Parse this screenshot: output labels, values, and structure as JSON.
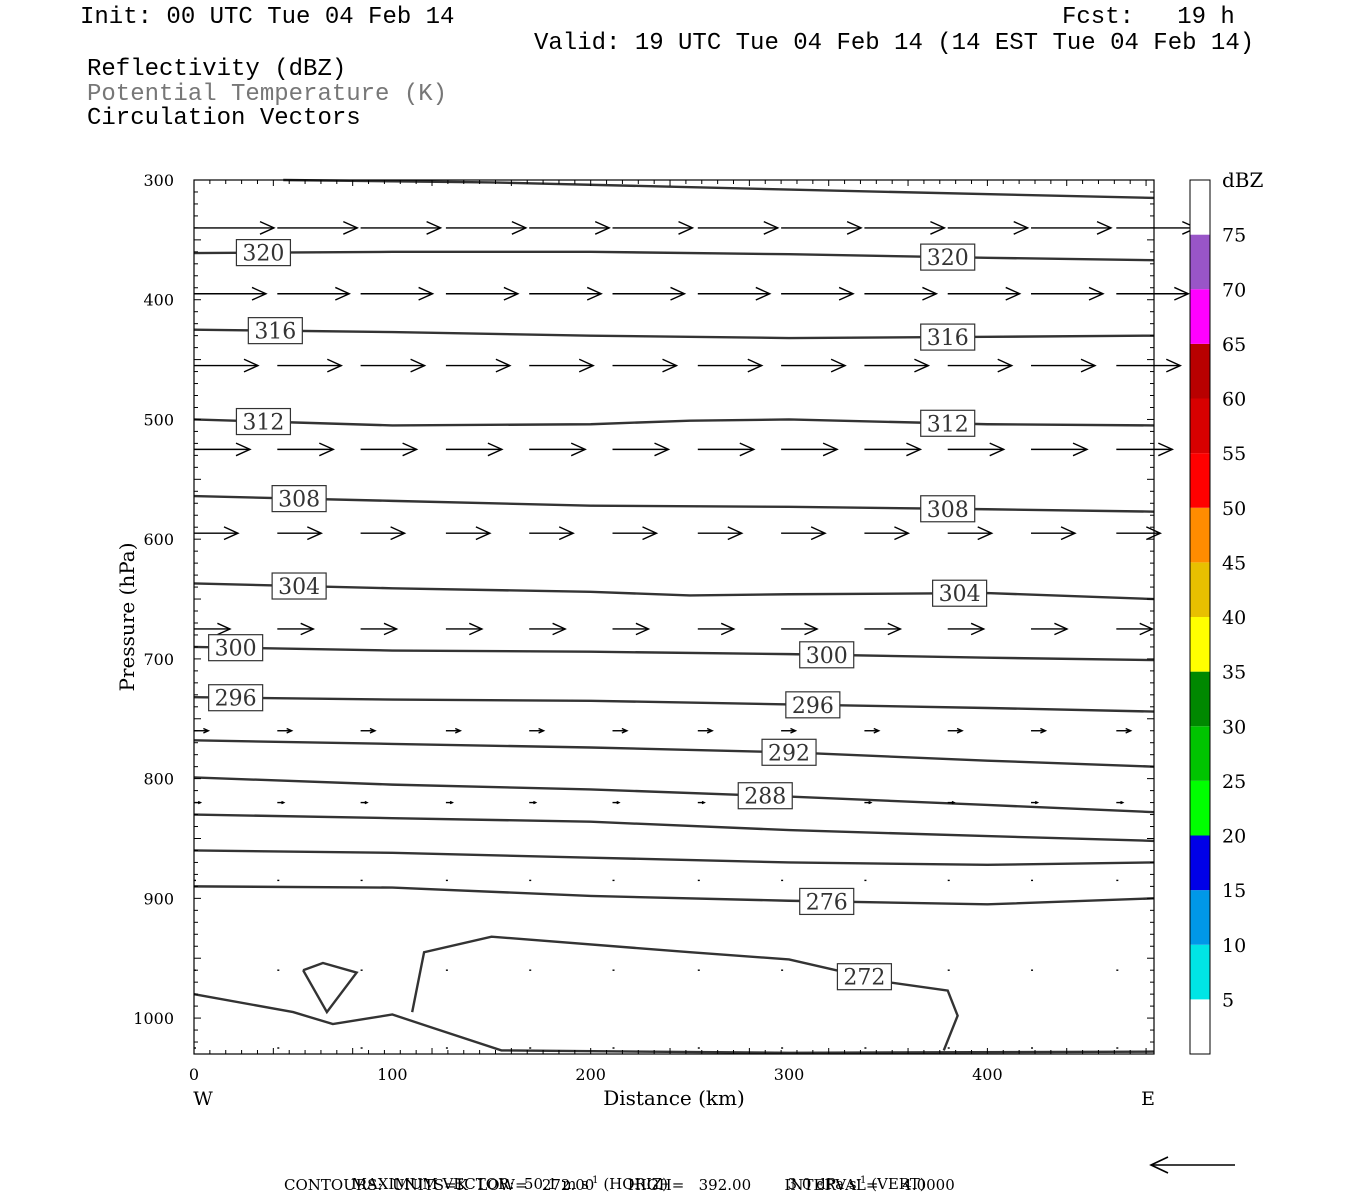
{
  "header": {
    "init": "Init: 00 UTC Tue 04 Feb 14",
    "fcst": "Fcst:   19 h",
    "valid": "Valid: 19 UTC Tue 04 Feb 14 (14 EST Tue 04 Feb 14)",
    "fields": [
      "Reflectivity (dBZ)",
      "Potential Temperature (K)",
      "Circulation Vectors"
    ]
  },
  "footer": {
    "max_vector": "MAXIMUM VECTOR:  50.1 m s",
    "horiz": "(HORIZ)",
    "vert_value": "3.0 dPa s",
    "vert": "(VERT)",
    "contours": "CONTOURS:  UNITS=K  LOW=   272.00       HIGH=   392.00       INTERVAL=     4.0000",
    "exp": "-1"
  },
  "colorbar": {
    "unit": "dBZ",
    "labels": [
      "5",
      "10",
      "15",
      "20",
      "25",
      "30",
      "35",
      "40",
      "45",
      "50",
      "55",
      "60",
      "65",
      "70",
      "75"
    ],
    "colors": [
      "#ffffff",
      "#00e5e5",
      "#0098e8",
      "#0000e8",
      "#00ff00",
      "#00c400",
      "#008800",
      "#ffff00",
      "#e8c000",
      "#ff8c00",
      "#ff0000",
      "#d80000",
      "#b80000",
      "#ff00ff",
      "#9955c8",
      "#ffffff"
    ]
  },
  "chart_data": {
    "type": "cross-section contour",
    "xlabel": "Distance (km)",
    "ylabel": "Pressure (hPa)",
    "xlim": [
      0,
      484
    ],
    "ylim": [
      1030,
      300
    ],
    "x_ticks": [
      0,
      100,
      200,
      300,
      400
    ],
    "y_ticks": [
      300,
      400,
      500,
      600,
      700,
      800,
      900,
      1000
    ],
    "x_end_labels": {
      "left": "W",
      "right": "E"
    },
    "contour_levels_K": [
      320,
      316,
      312,
      308,
      304,
      300,
      296,
      292,
      288,
      276,
      272
    ],
    "isentropes": [
      {
        "label": "",
        "x": [
          45,
          150,
          300,
          484
        ],
        "p": [
          300,
          302,
          308,
          315
        ]
      },
      {
        "label": "320",
        "x": [
          0,
          100,
          200,
          300,
          400,
          484
        ],
        "p": [
          361,
          360,
          360,
          362,
          365,
          367
        ]
      },
      {
        "label": "316",
        "x": [
          0,
          100,
          200,
          300,
          400,
          484
        ],
        "p": [
          425,
          427,
          430,
          432,
          431,
          430
        ]
      },
      {
        "label": "312",
        "x": [
          0,
          100,
          200,
          250,
          300,
          400,
          484
        ],
        "p": [
          500,
          505,
          504,
          501,
          500,
          504,
          505
        ]
      },
      {
        "label": "308",
        "x": [
          0,
          100,
          200,
          300,
          400,
          484
        ],
        "p": [
          564,
          568,
          572,
          573,
          575,
          577
        ]
      },
      {
        "label": "304",
        "x": [
          0,
          100,
          200,
          250,
          300,
          400,
          484
        ],
        "p": [
          637,
          641,
          644,
          647,
          646,
          645,
          650
        ]
      },
      {
        "label": "300",
        "x": [
          0,
          100,
          200,
          300,
          400,
          484
        ],
        "p": [
          690,
          693,
          694,
          696,
          699,
          701
        ]
      },
      {
        "label": "296",
        "x": [
          0,
          100,
          200,
          300,
          400,
          484
        ],
        "p": [
          732,
          734,
          735,
          738,
          741,
          744
        ]
      },
      {
        "label": "292",
        "x": [
          0,
          100,
          200,
          300,
          400,
          484
        ],
        "p": [
          768,
          771,
          774,
          778,
          785,
          790
        ]
      },
      {
        "label": "288",
        "x": [
          0,
          100,
          200,
          300,
          400,
          484
        ],
        "p": [
          799,
          805,
          809,
          815,
          822,
          828
        ]
      },
      {
        "label": "",
        "x": [
          0,
          100,
          200,
          300,
          400,
          484
        ],
        "p": [
          830,
          833,
          836,
          843,
          848,
          852
        ]
      },
      {
        "label": "",
        "x": [
          0,
          100,
          200,
          300,
          400,
          484
        ],
        "p": [
          860,
          862,
          866,
          870,
          872,
          870
        ]
      },
      {
        "label": "276",
        "x": [
          0,
          100,
          200,
          300,
          400,
          484
        ],
        "p": [
          890,
          891,
          898,
          902,
          905,
          900
        ]
      },
      {
        "label": "272",
        "x": [
          110,
          116,
          150,
          250,
          300,
          350,
          380,
          385,
          378
        ],
        "p": [
          995,
          945,
          932,
          945,
          951,
          970,
          977,
          998,
          1027
        ]
      },
      {
        "label": "",
        "x": [
          0,
          50,
          70,
          100,
          120,
          155,
          300,
          484
        ],
        "p": [
          980,
          995,
          1005,
          997,
          1008,
          1027,
          1029,
          1028
        ]
      }
    ],
    "closed_contours": [
      {
        "x": [
          55,
          65,
          82,
          67,
          55
        ],
        "p": [
          960,
          954,
          962,
          995,
          960
        ]
      }
    ],
    "vector_levels": [
      {
        "p": 340,
        "x": [
          0,
          42,
          84,
          127,
          169,
          211,
          254,
          296,
          338,
          380,
          422,
          465
        ],
        "u": [
          1,
          1,
          1,
          1,
          1,
          1,
          1,
          1,
          1,
          1,
          1,
          1
        ]
      },
      {
        "p": 395,
        "x": [
          0,
          42,
          84,
          127,
          169,
          211,
          254,
          296,
          338,
          380,
          422,
          465
        ],
        "u": [
          0.9,
          0.9,
          0.9,
          0.9,
          0.9,
          0.9,
          0.9,
          0.9,
          0.9,
          0.9,
          0.9,
          0.9
        ]
      },
      {
        "p": 455,
        "x": [
          0,
          42,
          84,
          127,
          169,
          211,
          254,
          296,
          338,
          380,
          422,
          465
        ],
        "u": [
          0.8,
          0.8,
          0.8,
          0.8,
          0.8,
          0.8,
          0.8,
          0.8,
          0.8,
          0.8,
          0.8,
          0.8
        ]
      },
      {
        "p": 525,
        "x": [
          0,
          42,
          84,
          127,
          169,
          211,
          254,
          296,
          338,
          380,
          422,
          465
        ],
        "u": [
          0.7,
          0.7,
          0.7,
          0.7,
          0.7,
          0.7,
          0.7,
          0.7,
          0.7,
          0.7,
          0.7,
          0.7
        ]
      },
      {
        "p": 595,
        "x": [
          0,
          42,
          84,
          127,
          169,
          211,
          254,
          296,
          338,
          380,
          422,
          465
        ],
        "u": [
          0.55,
          0.55,
          0.55,
          0.55,
          0.55,
          0.55,
          0.55,
          0.55,
          0.55,
          0.55,
          0.55,
          0.55
        ]
      },
      {
        "p": 675,
        "x": [
          0,
          42,
          84,
          127,
          169,
          211,
          254,
          296,
          338,
          380,
          422,
          465
        ],
        "u": [
          0.45,
          0.45,
          0.45,
          0.45,
          0.45,
          0.45,
          0.45,
          0.45,
          0.45,
          0.45,
          0.45,
          0.45
        ]
      },
      {
        "p": 760,
        "x": [
          0,
          42,
          84,
          127,
          169,
          211,
          254,
          296,
          338,
          380,
          422,
          465
        ],
        "u": [
          0.18,
          0.18,
          0.18,
          0.18,
          0.18,
          0.18,
          0.18,
          0.18,
          0.18,
          0.18,
          0.18,
          0.18
        ]
      },
      {
        "p": 820,
        "x": [
          0,
          42,
          84,
          127,
          169,
          211,
          254,
          296,
          338,
          380,
          422,
          465
        ],
        "u": [
          0.08,
          0.08,
          0.08,
          0.08,
          0.08,
          0.08,
          0.08,
          0.08,
          0.08,
          0.08,
          0.08,
          0.08
        ]
      },
      {
        "p": 885,
        "x": [
          0,
          42,
          84,
          127,
          169,
          211,
          254,
          296,
          338,
          380,
          422,
          465
        ],
        "u": [
          0.02,
          0.02,
          0.02,
          0.02,
          0.02,
          0.02,
          0.02,
          0.02,
          0.02,
          0.02,
          0.02,
          0.02
        ]
      },
      {
        "p": 960,
        "x": [
          0,
          42,
          84,
          127,
          169,
          211,
          254,
          296,
          338,
          380,
          422,
          465
        ],
        "u": [
          0.01,
          0.01,
          0.01,
          0.01,
          0.01,
          0.01,
          0.01,
          0.01,
          0.01,
          0.01,
          0.01,
          0.01
        ]
      },
      {
        "p": 1025,
        "x": [
          0,
          42,
          84,
          127,
          169,
          211,
          254,
          296,
          338,
          380,
          422,
          465
        ],
        "u": [
          0.01,
          0.01,
          0.01,
          0.01,
          0.01,
          0.01,
          0.01,
          0.01,
          0.01,
          0.01,
          0.01,
          0.01
        ]
      }
    ],
    "max_vector_horiz_m_s": 50.1,
    "max_vector_vert_dPa_s": 3.0
  }
}
